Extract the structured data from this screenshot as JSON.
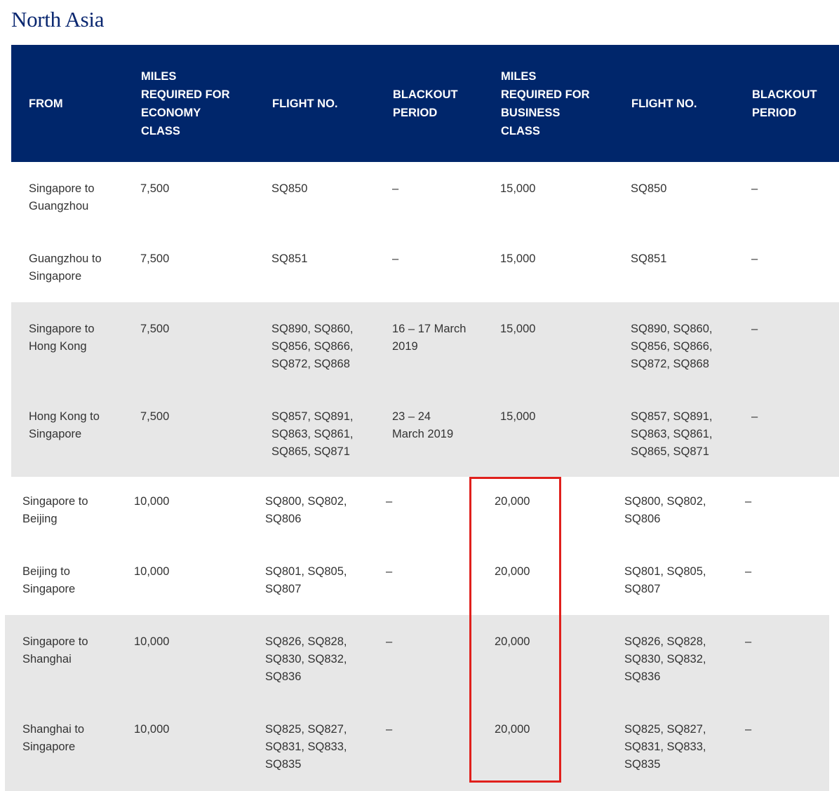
{
  "section_title": "North Asia",
  "headers": [
    "FROM",
    "MILES\nREQUIRED FOR\nECONOMY\nCLASS",
    "FLIGHT NO.",
    "BLACKOUT\nPERIOD",
    "MILES\nREQUIRED FOR\nBUSINESS\nCLASS",
    "FLIGHT NO.",
    "BLACKOUT\nPERIOD"
  ],
  "group_a": [
    [
      "Singapore to\nGuangzhou",
      "7,500",
      "SQ850",
      "–",
      "15,000",
      "SQ850",
      "–"
    ],
    [
      "Guangzhou to\nSingapore",
      "7,500",
      "SQ851",
      "–",
      "15,000",
      "SQ851",
      "–"
    ],
    [
      "Singapore to\nHong Kong",
      "7,500",
      "SQ890, SQ860,\nSQ856, SQ866,\nSQ872, SQ868",
      "16 – 17 March\n2019",
      "15,000",
      "SQ890, SQ860,\nSQ856, SQ866,\nSQ872, SQ868",
      "–"
    ],
    [
      "Hong Kong to\nSingapore",
      "7,500",
      "SQ857, SQ891,\nSQ863, SQ861,\nSQ865, SQ871",
      "23 – 24\nMarch 2019",
      "15,000",
      "SQ857, SQ891,\nSQ863, SQ861,\nSQ865, SQ871",
      "–"
    ]
  ],
  "group_b": [
    [
      "Singapore to\nBeijing",
      "10,000",
      "SQ800, SQ802,\nSQ806",
      "–",
      "20,000",
      "SQ800, SQ802,\nSQ806",
      "–"
    ],
    [
      "Beijing to\nSingapore",
      "10,000",
      "SQ801, SQ805,\nSQ807",
      "–",
      "20,000",
      "SQ801, SQ805,\nSQ807",
      "–"
    ],
    [
      "Singapore to\nShanghai",
      "10,000",
      "SQ826, SQ828,\nSQ830, SQ832,\nSQ836",
      "–",
      "20,000",
      "SQ826, SQ828,\nSQ830, SQ832,\nSQ836",
      "–"
    ],
    [
      "Shanghai to\nSingapore",
      "10,000",
      "SQ825, SQ827,\nSQ831, SQ833,\nSQ835",
      "–",
      "20,000",
      "SQ825, SQ827,\nSQ831, SQ833,\nSQ835",
      "–"
    ]
  ],
  "colors": {
    "header_bg": "#00266b",
    "title": "#0a2770",
    "band": "#e7e7e7",
    "highlight": "#e0201c"
  }
}
